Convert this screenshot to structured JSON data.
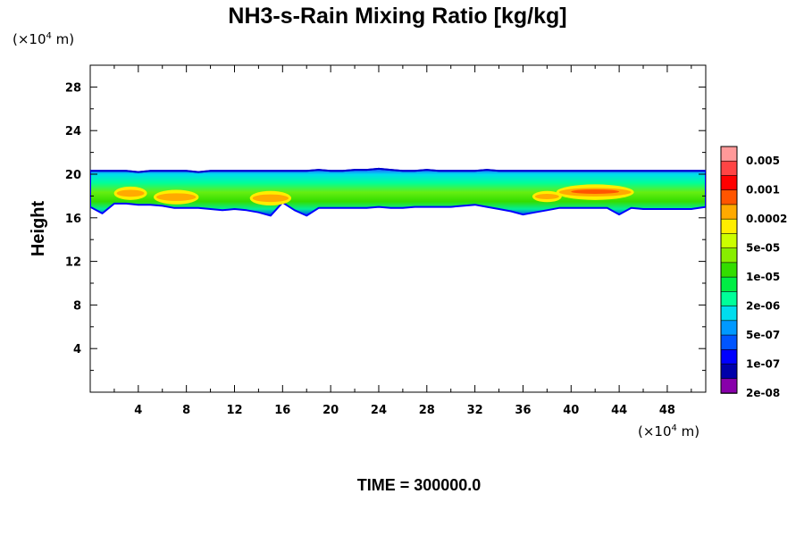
{
  "chart_data": {
    "type": "heatmap",
    "title": "NH3-s-Rain Mixing Ratio [kg/kg]",
    "ylabel": "Height",
    "xlabel": "",
    "x_unit": {
      "prefix": "(×10",
      "exp": "4",
      "suffix": " m)"
    },
    "y_unit": {
      "prefix": "(×10",
      "exp": "4",
      "suffix": " m)"
    },
    "xlim": [
      0,
      51.2
    ],
    "ylim": [
      0,
      30
    ],
    "x_ticks": [
      4,
      8,
      12,
      16,
      20,
      24,
      28,
      32,
      36,
      40,
      44,
      48
    ],
    "y_ticks": [
      4,
      8,
      12,
      16,
      20,
      24,
      28
    ],
    "footer": "TIME = 300000.0",
    "colorbar": {
      "colors": [
        "#ff9999",
        "#ff4444",
        "#ff0000",
        "#ff5500",
        "#ffaa00",
        "#ffee00",
        "#ccff00",
        "#88ee00",
        "#33dd00",
        "#00ee44",
        "#00ff99",
        "#00ddee",
        "#0099ff",
        "#0055ff",
        "#0000ff",
        "#0000aa",
        "#8800aa"
      ],
      "labels": [
        "0.005",
        "0.001",
        "0.0002",
        "5e-05",
        "1e-05",
        "2e-06",
        "5e-07",
        "1e-07",
        "2e-08"
      ]
    },
    "layer": {
      "x": [
        0,
        1,
        2,
        3,
        4,
        5,
        6,
        7,
        8,
        9,
        10,
        11,
        12,
        13,
        14,
        15,
        16,
        17,
        18,
        19,
        20,
        21,
        22,
        23,
        24,
        25,
        26,
        27,
        28,
        29,
        30,
        31,
        32,
        33,
        34,
        35,
        36,
        37,
        38,
        39,
        40,
        41,
        42,
        43,
        44,
        45,
        46,
        47,
        48,
        49,
        50,
        51.2
      ],
      "top": [
        20.3,
        20.3,
        20.3,
        20.3,
        20.2,
        20.3,
        20.3,
        20.3,
        20.3,
        20.2,
        20.3,
        20.3,
        20.3,
        20.3,
        20.3,
        20.3,
        20.3,
        20.3,
        20.3,
        20.4,
        20.3,
        20.3,
        20.4,
        20.4,
        20.5,
        20.4,
        20.3,
        20.3,
        20.4,
        20.3,
        20.3,
        20.3,
        20.3,
        20.4,
        20.3,
        20.3,
        20.3,
        20.3,
        20.3,
        20.3,
        20.3,
        20.3,
        20.3,
        20.3,
        20.3,
        20.3,
        20.3,
        20.3,
        20.3,
        20.3,
        20.3,
        20.3
      ],
      "bottom": [
        17.0,
        16.4,
        17.3,
        17.3,
        17.2,
        17.2,
        17.1,
        16.9,
        16.9,
        16.9,
        16.8,
        16.7,
        16.8,
        16.7,
        16.5,
        16.2,
        17.4,
        16.7,
        16.2,
        16.9,
        16.9,
        16.9,
        16.9,
        16.9,
        17.0,
        16.9,
        16.9,
        17.0,
        17.0,
        17.0,
        17.0,
        17.1,
        17.2,
        17.0,
        16.8,
        16.6,
        16.3,
        16.5,
        16.7,
        16.9,
        16.9,
        16.9,
        16.9,
        16.9,
        16.3,
        16.9,
        16.8,
        16.8,
        16.8,
        16.8,
        16.8,
        17.0
      ],
      "orange_patches": [
        {
          "x": [
            2.2,
            4.5
          ],
          "y": [
            17.8,
            18.7
          ]
        },
        {
          "x": [
            5.5,
            8.8
          ],
          "y": [
            17.4,
            18.4
          ]
        },
        {
          "x": [
            13.5,
            16.5
          ],
          "y": [
            17.3,
            18.3
          ]
        },
        {
          "x": [
            37.0,
            39.0
          ],
          "y": [
            17.6,
            18.3
          ]
        },
        {
          "x": [
            39.0,
            45.0
          ],
          "y": [
            17.8,
            18.9
          ]
        }
      ],
      "red_core": {
        "x": [
          40.0,
          44.0
        ],
        "y": [
          18.2,
          18.6
        ]
      }
    }
  }
}
